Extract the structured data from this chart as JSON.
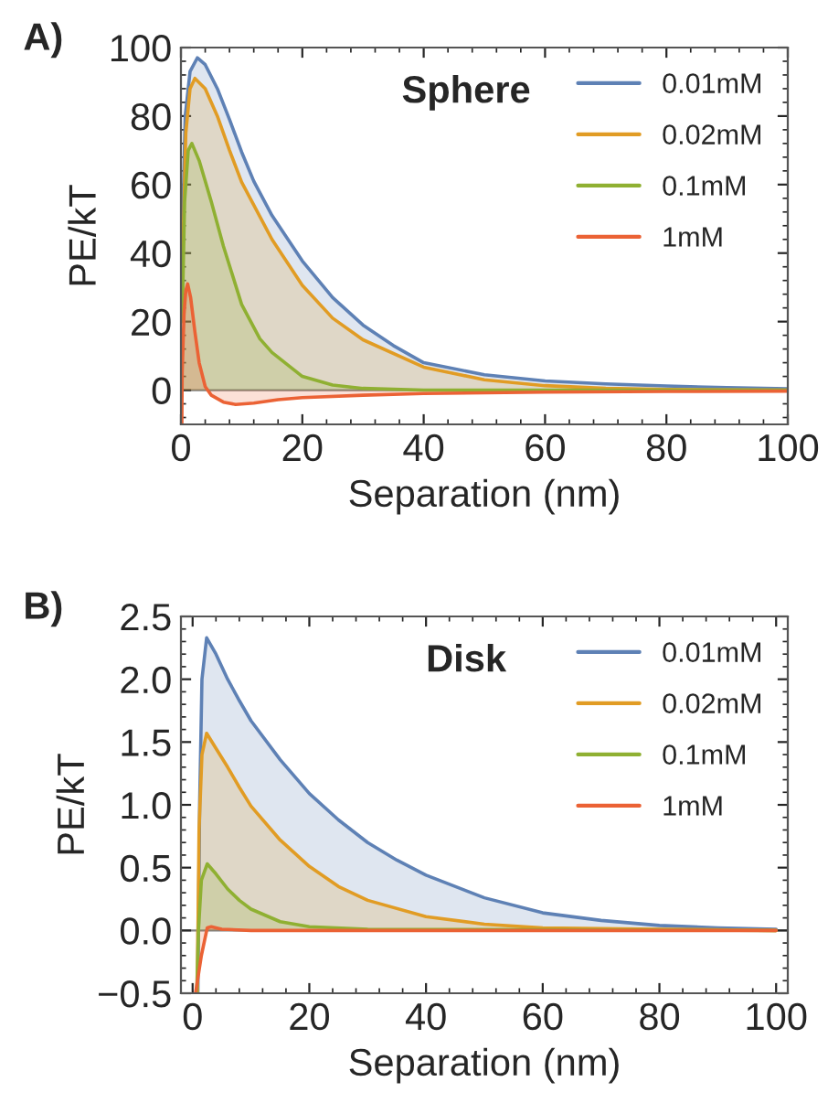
{
  "chart_data": [
    {
      "type": "area",
      "title": "Sphere",
      "xlabel": "Separation (nm)",
      "ylabel": "PE/kT",
      "annotations": [
        "A)"
      ],
      "xlim": [
        0,
        100
      ],
      "ylim": [
        -10,
        100
      ],
      "xticks": [
        0,
        20,
        40,
        60,
        80,
        100
      ],
      "yticks": [
        0,
        20,
        40,
        60,
        80,
        100
      ],
      "legend": "top right",
      "grid": false,
      "ref_lines": [
        {
          "axis": "y",
          "value": 0,
          "color": "#808080"
        }
      ],
      "series": [
        {
          "name": "0.01mM",
          "color": "#5e81b5",
          "x": [
            0.3,
            0.7,
            1.5,
            2.7,
            4,
            6,
            8,
            10,
            12,
            15,
            20,
            25,
            30,
            35,
            40,
            50,
            60,
            70,
            80,
            90,
            100
          ],
          "values": [
            50,
            80,
            93,
            97,
            95,
            88,
            79,
            69.5,
            61,
            51,
            37.7,
            27,
            19,
            13,
            8,
            4.5,
            2.7,
            1.8,
            1.2,
            0.7,
            0.4
          ]
        },
        {
          "name": "0.02mM",
          "color": "#e19c24",
          "x": [
            0.3,
            0.8,
            1.5,
            2.3,
            4,
            6,
            8,
            10,
            15,
            20,
            25,
            30,
            40,
            50,
            60,
            70,
            80,
            100
          ],
          "values": [
            40,
            75,
            88,
            91,
            88,
            80,
            70,
            60.7,
            44,
            30.6,
            21,
            14.7,
            6.7,
            3,
            1.3,
            0.5,
            0.2,
            0
          ]
        },
        {
          "name": "0.1mM",
          "color": "#8fb032",
          "x": [
            0.2,
            0.6,
            1.2,
            1.8,
            3,
            5,
            7,
            10,
            13,
            15,
            20,
            25,
            30,
            40,
            60,
            100
          ],
          "values": [
            20,
            55,
            70,
            72,
            67,
            55,
            42,
            25,
            15,
            11,
            4,
            1.5,
            0.5,
            0,
            0,
            0
          ]
        },
        {
          "name": "1mM",
          "color": "#eb6235",
          "x": [
            0.15,
            0.2,
            0.5,
            0.8,
            1.1,
            1.6,
            2.3,
            3,
            4,
            5,
            7,
            9,
            12,
            16,
            20,
            30,
            40,
            60,
            80,
            100
          ],
          "values": [
            -10,
            5,
            22,
            29,
            31,
            27,
            17,
            8,
            1,
            -1.5,
            -3.5,
            -4.2,
            -3.8,
            -2.8,
            -2.2,
            -1.5,
            -1,
            -0.6,
            -0.4,
            -0.3
          ]
        }
      ]
    },
    {
      "type": "area",
      "title": "Disk",
      "xlabel": "Separation (nm)",
      "ylabel": "PE/kT",
      "annotations": [
        "B)"
      ],
      "xlim": [
        -2,
        102
      ],
      "ylim": [
        -0.5,
        2.5
      ],
      "xticks": [
        0,
        20,
        40,
        60,
        80,
        100
      ],
      "yticks": [
        {
          "value": -0.5,
          "label": "−0.5"
        },
        {
          "value": 0,
          "label": "0.0"
        },
        {
          "value": 0.5,
          "label": "0.5"
        },
        {
          "value": 1.0,
          "label": "1.0"
        },
        {
          "value": 1.5,
          "label": "1.5"
        },
        {
          "value": 2.0,
          "label": "2.0"
        },
        {
          "value": 2.5,
          "label": "2.5"
        }
      ],
      "legend": "top right",
      "grid": false,
      "ref_lines": [
        {
          "axis": "y",
          "value": 0,
          "color": "#808080"
        }
      ],
      "series": [
        {
          "name": "0.01mM",
          "color": "#5e81b5",
          "x": [
            0.9,
            1.2,
            1.6,
            2.4,
            4,
            6,
            8,
            10,
            15,
            20,
            25,
            30,
            35,
            40,
            50,
            60,
            70,
            80,
            90,
            100
          ],
          "values": [
            -0.5,
            1.0,
            2.0,
            2.33,
            2.2,
            2.0,
            1.83,
            1.67,
            1.36,
            1.09,
            0.88,
            0.7,
            0.56,
            0.44,
            0.26,
            0.14,
            0.08,
            0.04,
            0.02,
            0.01
          ]
        },
        {
          "name": "0.02mM",
          "color": "#e19c24",
          "x": [
            0.8,
            1.1,
            1.6,
            2.4,
            4,
            6,
            8,
            10,
            15,
            20,
            25,
            30,
            40,
            50,
            60,
            80,
            100
          ],
          "values": [
            -0.5,
            0.8,
            1.4,
            1.57,
            1.45,
            1.3,
            1.14,
            0.99,
            0.72,
            0.51,
            0.35,
            0.24,
            0.11,
            0.05,
            0.02,
            0.01,
            0
          ]
        },
        {
          "name": "0.1mM",
          "color": "#8fb032",
          "x": [
            0.7,
            1.0,
            1.5,
            2.5,
            4,
            6,
            8,
            10,
            15,
            20,
            30,
            100
          ],
          "values": [
            -0.5,
            0,
            0.4,
            0.53,
            0.45,
            0.33,
            0.24,
            0.17,
            0.07,
            0.03,
            0.01,
            0
          ]
        },
        {
          "name": "1mM",
          "color": "#eb6235",
          "x": [
            0.5,
            1.5,
            2.5,
            3.2,
            5,
            10,
            100
          ],
          "values": [
            -0.5,
            -0.2,
            0.02,
            0.03,
            0.01,
            0,
            0
          ]
        }
      ]
    }
  ]
}
